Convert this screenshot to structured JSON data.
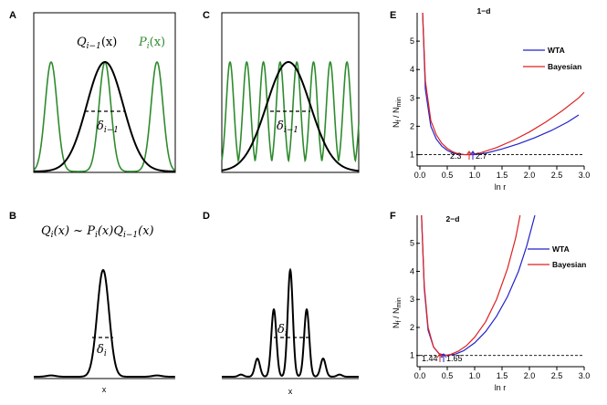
{
  "panels": {
    "A": {
      "label": "A",
      "eq_q": "Q",
      "eq_q_sub": "i−1",
      "eq_q_arg": "(x)",
      "eq_p": "P",
      "eq_p_sub": "i",
      "eq_p_arg": "(x)",
      "delta": "δ",
      "delta_sub": "i−1"
    },
    "B": {
      "label": "B",
      "eq": "Q",
      "eq_sub": "i",
      "eq_rest": "(x) ~ P",
      "eq_sub2": "i",
      "eq_rest2": "(x)Q",
      "eq_sub3": "i−1",
      "eq_rest3": "(x)",
      "delta": "δ",
      "delta_sub": "i",
      "xlabel": "x"
    },
    "C": {
      "label": "C",
      "delta": "δ",
      "delta_sub": "i−1"
    },
    "D": {
      "label": "D",
      "delta": "δ",
      "delta_sub": "i",
      "xlabel": "x"
    },
    "E": {
      "label": "E",
      "title": "1−d",
      "ylabel_main": "N",
      "ylabel_sub": "f",
      "ylabel_mid": " / N",
      "ylabel_sub2": "min",
      "xlabel": "ln r",
      "xticks": [
        "0.0",
        "0.5",
        "1.0",
        "1.5",
        "2.0",
        "2.5",
        "3.0"
      ],
      "yticks": [
        "1",
        "2",
        "3",
        "4",
        "5"
      ],
      "legend": [
        "WTA",
        "Bayesian"
      ],
      "annot_left": "2.3",
      "annot_right": "2.7"
    },
    "F": {
      "label": "F",
      "title": "2−d",
      "ylabel_main": "N",
      "ylabel_sub": "f",
      "ylabel_mid": " / N",
      "ylabel_sub2": "min",
      "xlabel": "ln r",
      "xticks": [
        "0.0",
        "0.5",
        "1.0",
        "1.5",
        "2.0",
        "2.5",
        "3.0"
      ],
      "yticks": [
        "1",
        "2",
        "3",
        "4",
        "5"
      ],
      "legend": [
        "WTA",
        "Bayesian"
      ],
      "annot_left": "1.44",
      "annot_right": "1.65"
    }
  },
  "colors": {
    "green": "#2e8b2e",
    "black": "#000000",
    "wta": "#2222cc",
    "bayes": "#dd2222",
    "arrow_red": "#dd2222",
    "arrow_blue": "#2222cc"
  },
  "chart_data": [
    {
      "type": "line",
      "title": "1−d",
      "xlabel": "ln r",
      "ylabel": "N_f / N_min",
      "xlim": [
        0,
        3
      ],
      "ylim": [
        0.6,
        6
      ],
      "legend": "top-right",
      "series": [
        {
          "name": "WTA",
          "x": [
            0.05,
            0.1,
            0.2,
            0.3,
            0.4,
            0.5,
            0.6,
            0.7,
            0.8,
            0.9,
            0.99,
            1.2,
            1.5,
            1.8,
            2.1,
            2.4,
            2.7,
            2.9
          ],
          "y": [
            6.0,
            3.3,
            2.0,
            1.55,
            1.3,
            1.15,
            1.06,
            1.01,
            1.0,
            1.0,
            1.0,
            1.05,
            1.2,
            1.38,
            1.6,
            1.85,
            2.15,
            2.4
          ]
        },
        {
          "name": "Bayesian",
          "x": [
            0.05,
            0.1,
            0.2,
            0.3,
            0.4,
            0.5,
            0.6,
            0.7,
            0.83,
            0.95,
            1.1,
            1.4,
            1.7,
            2.0,
            2.3,
            2.6,
            2.9,
            3.0
          ],
          "y": [
            6.0,
            3.6,
            2.2,
            1.7,
            1.4,
            1.22,
            1.1,
            1.03,
            1.0,
            1.01,
            1.06,
            1.25,
            1.5,
            1.8,
            2.15,
            2.55,
            3.0,
            3.2
          ]
        }
      ],
      "reference_line_y": 1.0
    },
    {
      "type": "line",
      "title": "2−d",
      "xlabel": "ln r",
      "ylabel": "N_f / N_min",
      "xlim": [
        0,
        3
      ],
      "ylim": [
        0.6,
        6
      ],
      "legend": "top-right",
      "series": [
        {
          "name": "WTA",
          "x": [
            0.03,
            0.08,
            0.15,
            0.25,
            0.35,
            0.5,
            0.65,
            0.8,
            1.0,
            1.2,
            1.4,
            1.6,
            1.8,
            1.95,
            2.1
          ],
          "y": [
            6.0,
            3.4,
            1.9,
            1.3,
            1.06,
            1.0,
            1.05,
            1.17,
            1.45,
            1.85,
            2.4,
            3.1,
            4.0,
            4.9,
            6.0
          ]
        },
        {
          "name": "Bayesian",
          "x": [
            0.03,
            0.08,
            0.15,
            0.25,
            0.36,
            0.44,
            0.55,
            0.7,
            0.85,
            1.0,
            1.2,
            1.4,
            1.6,
            1.75,
            1.83
          ],
          "y": [
            6.0,
            3.5,
            2.0,
            1.3,
            1.05,
            1.0,
            1.03,
            1.15,
            1.35,
            1.65,
            2.2,
            3.0,
            4.1,
            5.2,
            6.0
          ]
        }
      ],
      "reference_line_y": 1.0
    }
  ]
}
